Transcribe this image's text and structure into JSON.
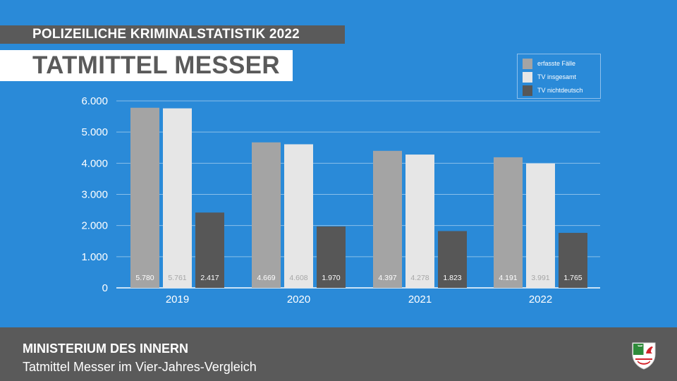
{
  "header": {
    "kicker": "POLIZEILICHE KRIMINALSTATISTIK 2022",
    "title": "TATMITTEL MESSER"
  },
  "footer": {
    "ministry": "MINISTERIUM DES INNERN",
    "subtitle": "Tatmittel Messer im Vier-Jahres-Vergleich"
  },
  "legend": [
    {
      "label": "erfasste Fälle",
      "color": "#a4a4a4"
    },
    {
      "label": "TV insgesamt",
      "color": "#e6e6e6"
    },
    {
      "label": "TV nichtdeutsch",
      "color": "#575757"
    }
  ],
  "chart_data": {
    "type": "bar",
    "categories": [
      "2019",
      "2020",
      "2021",
      "2022"
    ],
    "series": [
      {
        "name": "erfasste Fälle",
        "values": [
          5780,
          4669,
          4397,
          4191
        ],
        "labels": [
          "5.780",
          "4.669",
          "4.397",
          "4.191"
        ],
        "color": "#a4a4a4",
        "label_color": "#ffffff"
      },
      {
        "name": "TV insgesamt",
        "values": [
          5761,
          4608,
          4278,
          3991
        ],
        "labels": [
          "5.761",
          "4.608",
          "4.278",
          "3.991"
        ],
        "color": "#e6e6e6",
        "label_color": "#a6a6a6"
      },
      {
        "name": "TV nichtdeutsch",
        "values": [
          2417,
          1970,
          1823,
          1765
        ],
        "labels": [
          "2.417",
          "1.970",
          "1.823",
          "1.765"
        ],
        "color": "#575757",
        "label_color": "#ffffff"
      }
    ],
    "ylim": [
      0,
      6000
    ],
    "yticks": [
      0,
      1000,
      2000,
      3000,
      4000,
      5000,
      6000
    ],
    "ytick_labels": [
      "0",
      "1.000",
      "2.000",
      "3.000",
      "4.000",
      "5.000",
      "6.000"
    ],
    "grid": true,
    "legend_position": "top-right"
  }
}
